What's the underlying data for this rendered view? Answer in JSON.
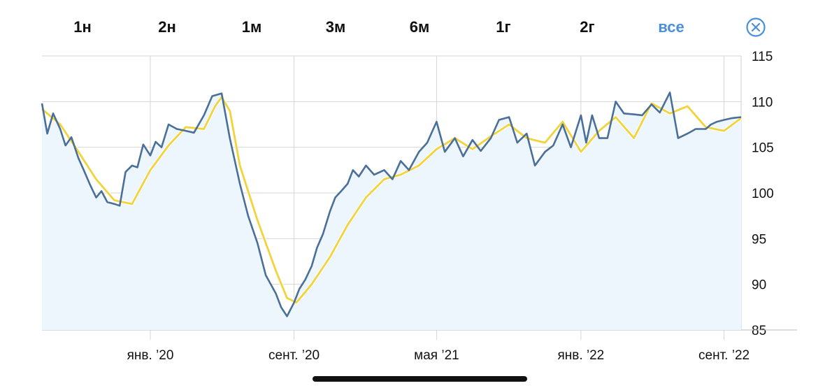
{
  "ranges": [
    {
      "label": "1н",
      "active": false
    },
    {
      "label": "2н",
      "active": false
    },
    {
      "label": "1м",
      "active": false
    },
    {
      "label": "3м",
      "active": false
    },
    {
      "label": "6м",
      "active": false
    },
    {
      "label": "1г",
      "active": false
    },
    {
      "label": "2г",
      "active": false
    },
    {
      "label": "все",
      "active": true
    }
  ],
  "close_icon": "close-circle-icon",
  "colors": {
    "accent": "#4a90d9",
    "price_line": "#4a6f98",
    "avg_line": "#f2d33b",
    "area_fill": "#edf5fd",
    "grid": "#d6d6d6"
  },
  "chart_data": {
    "type": "line",
    "title": "",
    "xlabel": "",
    "ylabel": "",
    "ylim": [
      85,
      115
    ],
    "yticks": [
      "115",
      "110",
      "105",
      "100",
      "95",
      "90",
      "85"
    ],
    "xticks": [
      {
        "label": "янв. ’20",
        "date": "2020-01-01"
      },
      {
        "label": "сент. ’20",
        "date": "2020-09-01"
      },
      {
        "label": "мая ’21",
        "date": "2021-05-01"
      },
      {
        "label": "янв. ’22",
        "date": "2022-01-01"
      },
      {
        "label": "сент. ’22",
        "date": "2022-09-01"
      }
    ],
    "xlim": [
      "2019-07-01",
      "2022-09-30"
    ],
    "grid": true,
    "series": [
      {
        "role": "price",
        "x": [
          "2019-07-01",
          "2019-07-10",
          "2019-07-20",
          "2019-08-01",
          "2019-08-10",
          "2019-08-20",
          "2019-09-01",
          "2019-09-10",
          "2019-09-20",
          "2019-10-01",
          "2019-10-10",
          "2019-10-20",
          "2019-11-01",
          "2019-11-10",
          "2019-11-20",
          "2019-12-01",
          "2019-12-10",
          "2019-12-20",
          "2020-01-01",
          "2020-01-10",
          "2020-01-20",
          "2020-02-01",
          "2020-02-15",
          "2020-03-01",
          "2020-03-15",
          "2020-04-01",
          "2020-04-15",
          "2020-05-01",
          "2020-05-15",
          "2020-06-01",
          "2020-06-15",
          "2020-07-01",
          "2020-07-15",
          "2020-08-01",
          "2020-08-10",
          "2020-08-20",
          "2020-09-01",
          "2020-09-10",
          "2020-09-20",
          "2020-10-01",
          "2020-10-10",
          "2020-10-20",
          "2020-11-01",
          "2020-11-10",
          "2020-11-20",
          "2020-12-01",
          "2020-12-10",
          "2020-12-20",
          "2021-01-01",
          "2021-01-15",
          "2021-02-01",
          "2021-02-15",
          "2021-03-01",
          "2021-03-15",
          "2021-04-01",
          "2021-04-15",
          "2021-05-01",
          "2021-05-15",
          "2021-06-01",
          "2021-06-15",
          "2021-07-01",
          "2021-07-15",
          "2021-08-01",
          "2021-08-15",
          "2021-09-01",
          "2021-09-15",
          "2021-10-01",
          "2021-10-15",
          "2021-11-01",
          "2021-11-15",
          "2021-12-01",
          "2021-12-15",
          "2022-01-01",
          "2022-01-10",
          "2022-01-20",
          "2022-02-01",
          "2022-02-15",
          "2022-03-01",
          "2022-03-15",
          "2022-04-01",
          "2022-04-15",
          "2022-05-01",
          "2022-05-15",
          "2022-06-01",
          "2022-06-15",
          "2022-07-01",
          "2022-07-15",
          "2022-08-01",
          "2022-08-10",
          "2022-08-20",
          "2022-09-01",
          "2022-09-15",
          "2022-09-30"
        ],
        "values": [
          109.8,
          106.5,
          108.7,
          107.0,
          105.2,
          106.1,
          103.8,
          102.5,
          101.0,
          99.5,
          100.2,
          99.0,
          98.8,
          98.6,
          102.3,
          103.0,
          102.8,
          105.3,
          104.1,
          105.6,
          105.0,
          107.5,
          107.0,
          106.8,
          106.6,
          108.5,
          110.6,
          110.9,
          106.0,
          101.0,
          97.5,
          94.5,
          91.0,
          89.0,
          87.5,
          86.5,
          88.0,
          89.5,
          90.5,
          92.0,
          94.0,
          95.5,
          98.0,
          99.5,
          100.2,
          101.0,
          102.5,
          101.8,
          103.0,
          102.0,
          102.5,
          101.5,
          103.5,
          102.5,
          104.5,
          105.5,
          107.8,
          104.5,
          106.0,
          104.0,
          105.8,
          104.6,
          106.0,
          108.0,
          108.3,
          105.5,
          106.5,
          103.0,
          104.5,
          105.2,
          107.5,
          105.0,
          108.5,
          105.5,
          108.5,
          106.0,
          106.0,
          110.0,
          108.7,
          108.6,
          108.5,
          109.7,
          108.8,
          111.0,
          106.0,
          106.5,
          107.0,
          107.0,
          107.5,
          107.8,
          108.0,
          108.2,
          108.3
        ]
      },
      {
        "role": "moving-average",
        "x": [
          "2019-07-01",
          "2019-08-01",
          "2019-09-01",
          "2019-10-01",
          "2019-11-01",
          "2019-12-01",
          "2020-01-01",
          "2020-02-01",
          "2020-03-01",
          "2020-04-01",
          "2020-04-20",
          "2020-05-01",
          "2020-05-15",
          "2020-06-01",
          "2020-07-01",
          "2020-08-01",
          "2020-08-20",
          "2020-09-05",
          "2020-10-01",
          "2020-11-01",
          "2020-12-01",
          "2021-01-01",
          "2021-02-01",
          "2021-03-01",
          "2021-04-01",
          "2021-05-01",
          "2021-06-01",
          "2021-07-01",
          "2021-08-01",
          "2021-09-01",
          "2021-10-01",
          "2021-11-01",
          "2021-12-01",
          "2022-01-01",
          "2022-02-01",
          "2022-03-01",
          "2022-04-01",
          "2022-05-01",
          "2022-06-01",
          "2022-07-01",
          "2022-08-01",
          "2022-09-01",
          "2022-09-30"
        ],
        "values": [
          109.2,
          107.5,
          104.5,
          101.5,
          99.2,
          98.8,
          102.5,
          105.2,
          107.2,
          107.0,
          109.5,
          110.5,
          109.0,
          103.0,
          97.0,
          91.5,
          88.5,
          88.0,
          90.0,
          93.0,
          96.5,
          99.5,
          101.5,
          102.0,
          103.0,
          104.8,
          106.0,
          104.8,
          106.2,
          107.5,
          106.0,
          105.5,
          107.8,
          104.5,
          106.8,
          108.3,
          106.0,
          109.8,
          108.7,
          109.5,
          107.2,
          106.8,
          108.2
        ]
      }
    ]
  }
}
